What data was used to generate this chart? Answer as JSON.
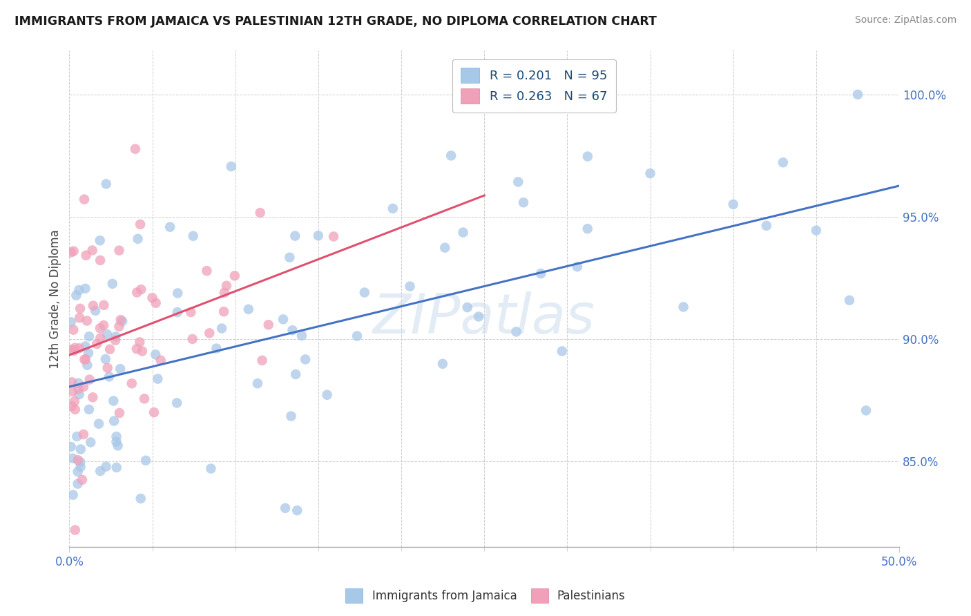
{
  "title": "IMMIGRANTS FROM JAMAICA VS PALESTINIAN 12TH GRADE, NO DIPLOMA CORRELATION CHART",
  "source": "Source: ZipAtlas.com",
  "ylabel": "12th Grade, No Diploma",
  "legend_jamaica": "Immigrants from Jamaica",
  "legend_palestinians": "Palestinians",
  "R_jamaica": 0.201,
  "N_jamaica": 95,
  "R_palestinians": 0.263,
  "N_palestinians": 67,
  "color_jamaica": "#A8C8E8",
  "color_palestinians": "#F0A0B8",
  "trendline_jamaica": "#4472C4",
  "trendline_palestinians": "#E05070",
  "xlim": [
    0.0,
    50.0
  ],
  "ylim": [
    81.5,
    101.8
  ],
  "yticks": [
    85.0,
    90.0,
    95.0,
    100.0
  ],
  "watermark_text": "ZIPatlas",
  "legend_R_jam": "R = 0.201",
  "legend_N_jam": "N = 95",
  "legend_R_pal": "R = 0.263",
  "legend_N_pal": "N = 67"
}
